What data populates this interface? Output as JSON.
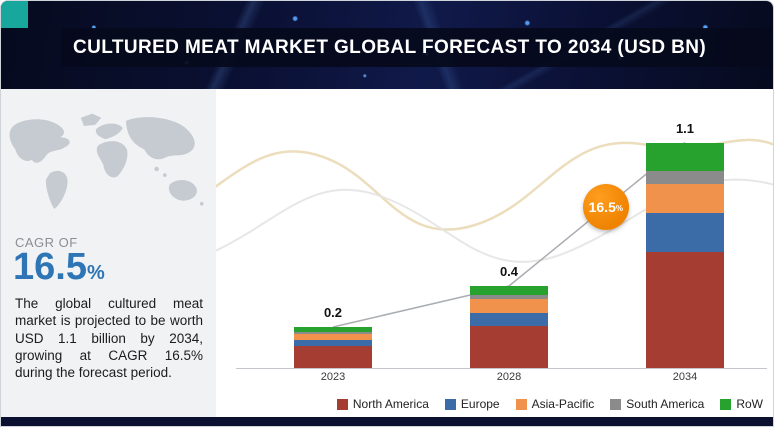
{
  "header": {
    "title": "CULTURED MEAT MARKET GLOBAL FORECAST TO 2034 (USD BN)"
  },
  "sidebar": {
    "cagr_label": "CAGR OF",
    "cagr_value": "16.5",
    "cagr_unit": "%",
    "description": "The global cultured meat market is projected to be worth USD 1.1 billion by 2034, growing at CAGR 16.5% during the forecast period."
  },
  "badge": {
    "value": "16.5",
    "unit": "%"
  },
  "colors": {
    "accent_teal": "#18a79c",
    "cagr_blue": "#2e75b6",
    "badge_orange": "#ef8300",
    "banner_navy": "#0b1136"
  },
  "chart_data": {
    "type": "bar",
    "subtype": "stacked",
    "title": "Cultured Meat Market Global Forecast to 2034 (USD BN)",
    "categories": [
      "2023",
      "2028",
      "2034"
    ],
    "totals": [
      0.2,
      0.4,
      1.1
    ],
    "value_labels": [
      "0.2",
      "0.4",
      "1.1"
    ],
    "series": [
      {
        "name": "North America",
        "color": "#a63d33",
        "values": [
          0.105,
          0.205,
          0.565
        ]
      },
      {
        "name": "Europe",
        "color": "#3c6ca8",
        "values": [
          0.03,
          0.065,
          0.19
        ]
      },
      {
        "name": "Asia-Pacific",
        "color": "#f0924c",
        "values": [
          0.03,
          0.065,
          0.145
        ]
      },
      {
        "name": "South America",
        "color": "#8b8b8b",
        "values": [
          0.01,
          0.02,
          0.06
        ]
      },
      {
        "name": "RoW",
        "color": "#27a22e",
        "values": [
          0.025,
          0.045,
          0.14
        ]
      }
    ],
    "ylabel": "",
    "xlabel": "",
    "ylim": [
      0,
      1.2
    ],
    "grid": false,
    "legend_position": "bottom",
    "cagr_annotation": "16.5%"
  }
}
